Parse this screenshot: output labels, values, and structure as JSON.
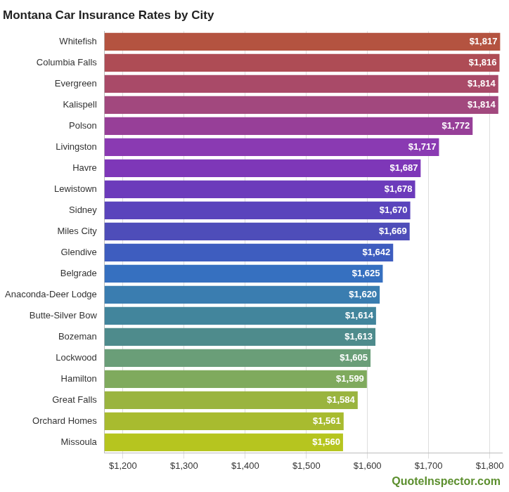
{
  "chart_data": {
    "type": "bar",
    "title": "Montana Car Insurance Rates by City",
    "orientation": "horizontal",
    "categories": [
      "Whitefish",
      "Columbia Falls",
      "Evergreen",
      "Kalispell",
      "Polson",
      "Livingston",
      "Havre",
      "Lewistown",
      "Sidney",
      "Miles City",
      "Glendive",
      "Belgrade",
      "Anaconda-Deer Lodge",
      "Butte-Silver Bow",
      "Bozeman",
      "Lockwood",
      "Hamilton",
      "Great Falls",
      "Orchard Homes",
      "Missoula"
    ],
    "values": [
      1817,
      1816,
      1814,
      1814,
      1772,
      1717,
      1687,
      1678,
      1670,
      1669,
      1642,
      1625,
      1620,
      1614,
      1613,
      1605,
      1599,
      1584,
      1561,
      1560
    ],
    "value_labels": [
      "$1,817",
      "$1,816",
      "$1,814",
      "$1,814",
      "$1,772",
      "$1,717",
      "$1,687",
      "$1,678",
      "$1,670",
      "$1,669",
      "$1,642",
      "$1,625",
      "$1,620",
      "$1,614",
      "$1,613",
      "$1,605",
      "$1,599",
      "$1,584",
      "$1,561",
      "$1,560"
    ],
    "colors": [
      "#b45340",
      "#ae4c55",
      "#a94a68",
      "#a2487e",
      "#973f98",
      "#8a3ab2",
      "#7e37b8",
      "#6c3bbb",
      "#5a44bc",
      "#4e4db9",
      "#3e5dbf",
      "#3670c0",
      "#3a7db0",
      "#42859c",
      "#4e8b8c",
      "#6a9e78",
      "#7faa5d",
      "#9ab43f",
      "#a8bb2f",
      "#b6c51f"
    ],
    "xlim": [
      1170,
      1820
    ],
    "xticks": [
      {
        "value": 1200,
        "label": "$1,200"
      },
      {
        "value": 1300,
        "label": "$1,300"
      },
      {
        "value": 1400,
        "label": "$1,400"
      },
      {
        "value": 1500,
        "label": "$1,500"
      },
      {
        "value": 1600,
        "label": "$1,600"
      },
      {
        "value": 1700,
        "label": "$1,700"
      },
      {
        "value": 1800,
        "label": "$1,800"
      }
    ],
    "grid": true,
    "data_labels": true,
    "annotations": [
      "QuoteInspector.com"
    ]
  }
}
